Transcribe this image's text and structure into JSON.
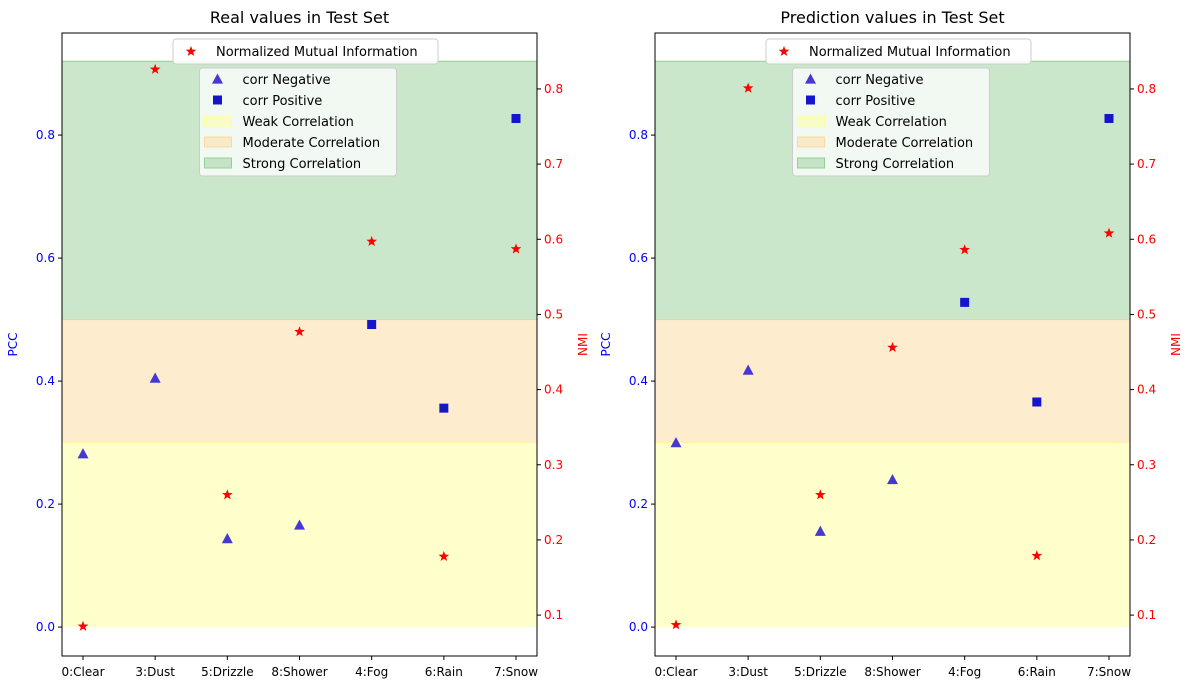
{
  "chart_data": [
    {
      "type": "scatter",
      "title": "Real values in Test Set",
      "xlabel": "",
      "ylabel": "PCC",
      "y2label": "NMI",
      "categories": [
        "0:Clear",
        "3:Dust",
        "5:Drizzle",
        "8:Shower",
        "4:Fog",
        "6:Rain",
        "7:Snow"
      ],
      "ylim": [
        -0.047,
        0.966
      ],
      "y2lim": [
        0.0456,
        0.8744
      ],
      "yticks": [
        0.0,
        0.2,
        0.4,
        0.6,
        0.8
      ],
      "y2ticks": [
        0.1,
        0.2,
        0.3,
        0.4,
        0.5,
        0.6,
        0.7,
        0.8
      ],
      "series": [
        {
          "name": "corr Negative",
          "axis": "left",
          "marker": "triangle",
          "points": [
            {
              "category": "0:Clear",
              "value": 0.282
            },
            {
              "category": "3:Dust",
              "value": 0.405
            },
            {
              "category": "5:Drizzle",
              "value": 0.144
            },
            {
              "category": "8:Shower",
              "value": 0.166
            }
          ]
        },
        {
          "name": "corr Positive",
          "axis": "left",
          "marker": "square",
          "points": [
            {
              "category": "4:Fog",
              "value": 0.492
            },
            {
              "category": "6:Rain",
              "value": 0.356
            },
            {
              "category": "7:Snow",
              "value": 0.827
            }
          ]
        },
        {
          "name": "Normalized Mutual Information",
          "axis": "right",
          "marker": "star",
          "points": [
            {
              "category": "0:Clear",
              "value": 0.085
            },
            {
              "category": "3:Dust",
              "value": 0.826
            },
            {
              "category": "5:Drizzle",
              "value": 0.26
            },
            {
              "category": "8:Shower",
              "value": 0.477
            },
            {
              "category": "4:Fog",
              "value": 0.597
            },
            {
              "category": "6:Rain",
              "value": 0.178
            },
            {
              "category": "7:Snow",
              "value": 0.587
            }
          ]
        }
      ],
      "bands": [
        {
          "name": "Weak Correlation",
          "from": 0.0,
          "to": 0.3,
          "color": "#ffff99"
        },
        {
          "name": "Moderate Correlation",
          "from": 0.3,
          "to": 0.5,
          "color": "#fdd9a0"
        },
        {
          "name": "Strong Correlation",
          "from": 0.5,
          "to": 0.92,
          "color": "#98cf98"
        }
      ],
      "legend_top": [
        "Normalized Mutual Information"
      ],
      "legend_main": [
        "corr Negative",
        "corr Positive",
        "Weak Correlation",
        "Moderate Correlation",
        "Strong Correlation"
      ],
      "legend_placement": "upper center"
    },
    {
      "type": "scatter",
      "title": "Prediction values in Test Set",
      "xlabel": "",
      "ylabel": "PCC",
      "y2label": "NMI",
      "categories": [
        "0:Clear",
        "3:Dust",
        "5:Drizzle",
        "8:Shower",
        "4:Fog",
        "6:Rain",
        "7:Snow"
      ],
      "ylim": [
        -0.047,
        0.966
      ],
      "y2lim": [
        0.0456,
        0.8744
      ],
      "yticks": [
        0.0,
        0.2,
        0.4,
        0.6,
        0.8
      ],
      "y2ticks": [
        0.1,
        0.2,
        0.3,
        0.4,
        0.5,
        0.6,
        0.7,
        0.8
      ],
      "series": [
        {
          "name": "corr Negative",
          "axis": "left",
          "marker": "triangle",
          "points": [
            {
              "category": "0:Clear",
              "value": 0.3
            },
            {
              "category": "3:Dust",
              "value": 0.418
            },
            {
              "category": "5:Drizzle",
              "value": 0.156
            },
            {
              "category": "8:Shower",
              "value": 0.24
            }
          ]
        },
        {
          "name": "corr Positive",
          "axis": "left",
          "marker": "square",
          "points": [
            {
              "category": "4:Fog",
              "value": 0.528
            },
            {
              "category": "6:Rain",
              "value": 0.366
            },
            {
              "category": "7:Snow",
              "value": 0.827
            }
          ]
        },
        {
          "name": "Normalized Mutual Information",
          "axis": "right",
          "marker": "star",
          "points": [
            {
              "category": "0:Clear",
              "value": 0.087
            },
            {
              "category": "3:Dust",
              "value": 0.801
            },
            {
              "category": "5:Drizzle",
              "value": 0.26
            },
            {
              "category": "8:Shower",
              "value": 0.456
            },
            {
              "category": "4:Fog",
              "value": 0.586
            },
            {
              "category": "6:Rain",
              "value": 0.179
            },
            {
              "category": "7:Snow",
              "value": 0.608
            }
          ]
        }
      ],
      "bands": [
        {
          "name": "Weak Correlation",
          "from": 0.0,
          "to": 0.3,
          "color": "#ffff99"
        },
        {
          "name": "Moderate Correlation",
          "from": 0.3,
          "to": 0.5,
          "color": "#fdd9a0"
        },
        {
          "name": "Strong Correlation",
          "from": 0.5,
          "to": 0.92,
          "color": "#98cf98"
        }
      ],
      "legend_top": [
        "Normalized Mutual Information"
      ],
      "legend_main": [
        "corr Negative",
        "corr Positive",
        "Weak Correlation",
        "Moderate Correlation",
        "Strong Correlation"
      ],
      "legend_placement": "upper center"
    }
  ],
  "colors": {
    "pcc_axis": "#0000ff",
    "nmi_axis": "#ff0000",
    "marker_negative": "#3a2ed0",
    "marker_positive": "#1515cc",
    "marker_star": "#ff0000"
  }
}
